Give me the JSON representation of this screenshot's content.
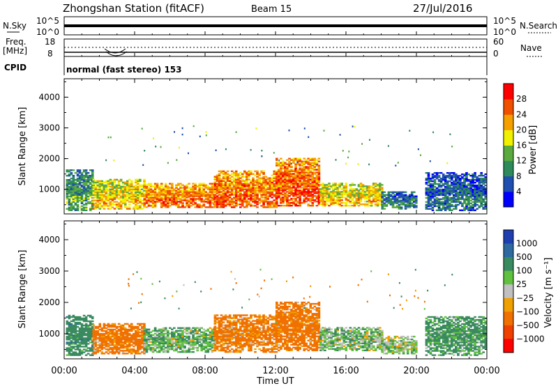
{
  "header": {
    "station": "Zhongshan Station (fitACF)",
    "beam": "Beam 15",
    "date": "27/Jul/2016"
  },
  "params_panel": {
    "nsky_label": "N.Sky",
    "nsky_ticks": [
      "10^5",
      "10^0"
    ],
    "nsearch_label": "N.Search",
    "nsearch_ticks": [
      "10^5",
      "10^0"
    ],
    "freq_label_1": "Freq.",
    "freq_label_2": "[MHz]",
    "freq_ticks": [
      "18",
      "8"
    ],
    "nave_label": "Nave",
    "nave_ticks": [
      "60",
      "0"
    ],
    "cpid_label": "CPID",
    "cpid_text": "normal (fast stereo) 153"
  },
  "chart_data": [
    {
      "type": "heatmap",
      "quantity": "Power",
      "ylabel": "Slant Range [km]",
      "xlabel": "Time UT",
      "x_ticks": [
        "00:00",
        "04:00",
        "08:00",
        "12:00",
        "16:00",
        "20:00",
        "00:00"
      ],
      "x_range_hours": [
        0,
        24
      ],
      "y_ticks": [
        1000,
        2000,
        3000,
        4000
      ],
      "ylim": [
        200,
        4600
      ],
      "colorbar": {
        "label": "Power [dB]",
        "ticks": [
          "4",
          "8",
          "12",
          "16",
          "20",
          "24",
          "28"
        ],
        "range": [
          0,
          32
        ],
        "colors": [
          "#0000ff",
          "#1f4fb0",
          "#2e8a5a",
          "#5aaa40",
          "#f0f000",
          "#f5a000",
          "#f05000",
          "#ff0000"
        ]
      },
      "echo_regions": [
        {
          "t0": 0.1,
          "t1": 1.6,
          "r0": 300,
          "r1": 1650,
          "value": 14
        },
        {
          "t0": 1.6,
          "t1": 4.5,
          "r0": 350,
          "r1": 1300,
          "value": 22
        },
        {
          "t0": 4.5,
          "t1": 8.5,
          "r0": 400,
          "r1": 1200,
          "value": 26
        },
        {
          "t0": 8.5,
          "t1": 12.0,
          "r0": 400,
          "r1": 1600,
          "value": 27
        },
        {
          "t0": 12.0,
          "t1": 14.5,
          "r0": 450,
          "r1": 2000,
          "value": 28
        },
        {
          "t0": 14.5,
          "t1": 18.0,
          "r0": 450,
          "r1": 1200,
          "value": 22
        },
        {
          "t0": 18.0,
          "t1": 20.0,
          "r0": 350,
          "r1": 900,
          "value": 12
        },
        {
          "t0": 20.5,
          "t1": 24.0,
          "r0": 300,
          "r1": 1550,
          "value": 10
        }
      ]
    },
    {
      "type": "heatmap",
      "quantity": "Velocity",
      "ylabel": "Slant Range [km]",
      "xlabel": "Time UT",
      "x_ticks": [
        "00:00",
        "04:00",
        "08:00",
        "12:00",
        "16:00",
        "20:00",
        "00:00"
      ],
      "x_range_hours": [
        0,
        24
      ],
      "y_ticks": [
        1000,
        2000,
        3000,
        4000
      ],
      "ylim": [
        200,
        4600
      ],
      "colorbar": {
        "label": "Velocity [m s⁻¹]",
        "ticks": [
          "1000",
          "500",
          "100",
          "25",
          "−25",
          "−100",
          "−500",
          "−1000"
        ],
        "colors": [
          "#1f3fb0",
          "#2e6aa0",
          "#3a8a60",
          "#60c040",
          "#c0c0c0",
          "#f0a000",
          "#f07000",
          "#f04000",
          "#ff0000"
        ]
      },
      "echo_regions": [
        {
          "t0": 0.1,
          "t1": 1.6,
          "r0": 300,
          "r1": 1600,
          "value": 300
        },
        {
          "t0": 1.6,
          "t1": 4.5,
          "r0": 350,
          "r1": 1300,
          "value": -200
        },
        {
          "t0": 4.5,
          "t1": 8.5,
          "r0": 400,
          "r1": 1200,
          "value": 80
        },
        {
          "t0": 8.5,
          "t1": 12.0,
          "r0": 400,
          "r1": 1600,
          "value": -150
        },
        {
          "t0": 12.0,
          "t1": 14.5,
          "r0": 450,
          "r1": 2000,
          "value": -200
        },
        {
          "t0": 14.5,
          "t1": 18.0,
          "r0": 450,
          "r1": 1200,
          "value": 60
        },
        {
          "t0": 18.0,
          "t1": 20.0,
          "r0": 350,
          "r1": 900,
          "value": 40
        },
        {
          "t0": 20.5,
          "t1": 24.0,
          "r0": 300,
          "r1": 1550,
          "value": 150
        }
      ]
    }
  ]
}
